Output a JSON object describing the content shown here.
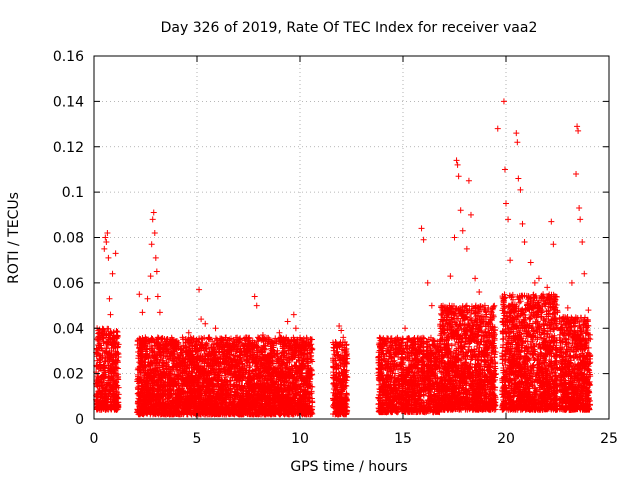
{
  "chart_data": {
    "type": "scatter",
    "title": "Day 326 of 2019, Rate Of TEC Index for receiver vaa2",
    "xlabel": "GPS time / hours",
    "ylabel": "ROTI / TECUs",
    "xlim": [
      0,
      25
    ],
    "ylim": [
      0,
      0.16
    ],
    "x_ticks": [
      "0",
      "5",
      "10",
      "15",
      "20",
      "25"
    ],
    "y_ticks": [
      "0",
      "0.02",
      "0.04",
      "0.06",
      "0.08",
      "0.1",
      "0.12",
      "0.14",
      "0.16"
    ],
    "grid": true,
    "marker": "+",
    "color": "#ff0000",
    "series": [
      {
        "name": "vaa2",
        "points": [
          [
            0.15,
            0.04
          ],
          [
            0.2,
            0.03
          ],
          [
            0.25,
            0.012
          ],
          [
            0.3,
            0.022
          ],
          [
            0.35,
            0.006
          ],
          [
            0.4,
            0.037
          ],
          [
            0.45,
            0.018
          ],
          [
            0.5,
            0.075
          ],
          [
            0.55,
            0.08
          ],
          [
            0.6,
            0.078
          ],
          [
            0.65,
            0.082
          ],
          [
            0.7,
            0.071
          ],
          [
            0.75,
            0.053
          ],
          [
            0.8,
            0.046
          ],
          [
            0.85,
            0.03
          ],
          [
            0.9,
            0.064
          ],
          [
            0.95,
            0.013
          ],
          [
            1.05,
            0.073
          ],
          [
            1.1,
            0.025
          ],
          [
            1.15,
            0.018
          ],
          [
            2.2,
            0.055
          ],
          [
            2.35,
            0.047
          ],
          [
            2.5,
            0.033
          ],
          [
            2.6,
            0.053
          ],
          [
            2.75,
            0.063
          ],
          [
            2.8,
            0.077
          ],
          [
            2.85,
            0.088
          ],
          [
            2.9,
            0.091
          ],
          [
            2.95,
            0.082
          ],
          [
            3.0,
            0.071
          ],
          [
            3.05,
            0.065
          ],
          [
            3.1,
            0.054
          ],
          [
            3.2,
            0.047
          ],
          [
            3.4,
            0.029
          ],
          [
            3.6,
            0.021
          ],
          [
            3.8,
            0.035
          ],
          [
            4.2,
            0.028
          ],
          [
            4.6,
            0.038
          ],
          [
            4.9,
            0.032
          ],
          [
            5.1,
            0.057
          ],
          [
            5.2,
            0.044
          ],
          [
            5.4,
            0.042
          ],
          [
            5.6,
            0.036
          ],
          [
            5.9,
            0.04
          ],
          [
            6.3,
            0.03
          ],
          [
            6.7,
            0.024
          ],
          [
            7.1,
            0.028
          ],
          [
            7.5,
            0.032
          ],
          [
            7.8,
            0.054
          ],
          [
            7.9,
            0.05
          ],
          [
            8.2,
            0.037
          ],
          [
            8.6,
            0.031
          ],
          [
            9.0,
            0.038
          ],
          [
            9.4,
            0.043
          ],
          [
            9.7,
            0.046
          ],
          [
            9.8,
            0.04
          ],
          [
            10.2,
            0.032
          ],
          [
            11.9,
            0.041
          ],
          [
            12.0,
            0.039
          ],
          [
            12.1,
            0.036
          ],
          [
            13.8,
            0.027
          ],
          [
            14.0,
            0.018
          ],
          [
            14.5,
            0.024
          ],
          [
            14.9,
            0.035
          ],
          [
            15.1,
            0.04
          ],
          [
            15.6,
            0.033
          ],
          [
            15.9,
            0.084
          ],
          [
            16.0,
            0.079
          ],
          [
            16.2,
            0.06
          ],
          [
            16.4,
            0.05
          ],
          [
            16.8,
            0.041
          ],
          [
            17.0,
            0.048
          ],
          [
            17.3,
            0.063
          ],
          [
            17.5,
            0.08
          ],
          [
            17.6,
            0.114
          ],
          [
            17.65,
            0.112
          ],
          [
            17.7,
            0.107
          ],
          [
            17.8,
            0.092
          ],
          [
            17.9,
            0.083
          ],
          [
            18.1,
            0.075
          ],
          [
            18.2,
            0.105
          ],
          [
            18.3,
            0.09
          ],
          [
            18.5,
            0.062
          ],
          [
            18.7,
            0.056
          ],
          [
            19.0,
            0.048
          ],
          [
            19.3,
            0.039
          ],
          [
            19.6,
            0.128
          ],
          [
            19.9,
            0.14
          ],
          [
            19.95,
            0.11
          ],
          [
            20.0,
            0.095
          ],
          [
            20.1,
            0.088
          ],
          [
            20.2,
            0.07
          ],
          [
            20.5,
            0.126
          ],
          [
            20.55,
            0.122
          ],
          [
            20.6,
            0.106
          ],
          [
            20.7,
            0.101
          ],
          [
            20.8,
            0.086
          ],
          [
            20.9,
            0.078
          ],
          [
            21.2,
            0.069
          ],
          [
            21.4,
            0.06
          ],
          [
            21.6,
            0.062
          ],
          [
            21.8,
            0.055
          ],
          [
            22.0,
            0.058
          ],
          [
            22.2,
            0.087
          ],
          [
            22.3,
            0.077
          ],
          [
            22.5,
            0.047
          ],
          [
            22.8,
            0.043
          ],
          [
            23.0,
            0.049
          ],
          [
            23.2,
            0.06
          ],
          [
            23.4,
            0.108
          ],
          [
            23.45,
            0.129
          ],
          [
            23.5,
            0.127
          ],
          [
            23.55,
            0.093
          ],
          [
            23.6,
            0.088
          ],
          [
            23.7,
            0.078
          ],
          [
            23.8,
            0.064
          ],
          [
            24.0,
            0.048
          ]
        ]
      }
    ],
    "dense_bands": [
      {
        "x_start": 0.1,
        "x_end": 1.2,
        "y_min": 0.004,
        "y_max": 0.04,
        "count": 480
      },
      {
        "x_start": 2.1,
        "x_end": 10.6,
        "y_min": 0.002,
        "y_max": 0.036,
        "count": 4300
      },
      {
        "x_start": 11.6,
        "x_end": 12.3,
        "y_min": 0.002,
        "y_max": 0.034,
        "count": 320
      },
      {
        "x_start": 13.8,
        "x_end": 16.8,
        "y_min": 0.003,
        "y_max": 0.036,
        "count": 1300
      },
      {
        "x_start": 16.8,
        "x_end": 19.5,
        "y_min": 0.004,
        "y_max": 0.05,
        "count": 1500
      },
      {
        "x_start": 19.8,
        "x_end": 22.5,
        "y_min": 0.004,
        "y_max": 0.055,
        "count": 1500
      },
      {
        "x_start": 22.6,
        "x_end": 24.1,
        "y_min": 0.004,
        "y_max": 0.045,
        "count": 800
      }
    ]
  }
}
